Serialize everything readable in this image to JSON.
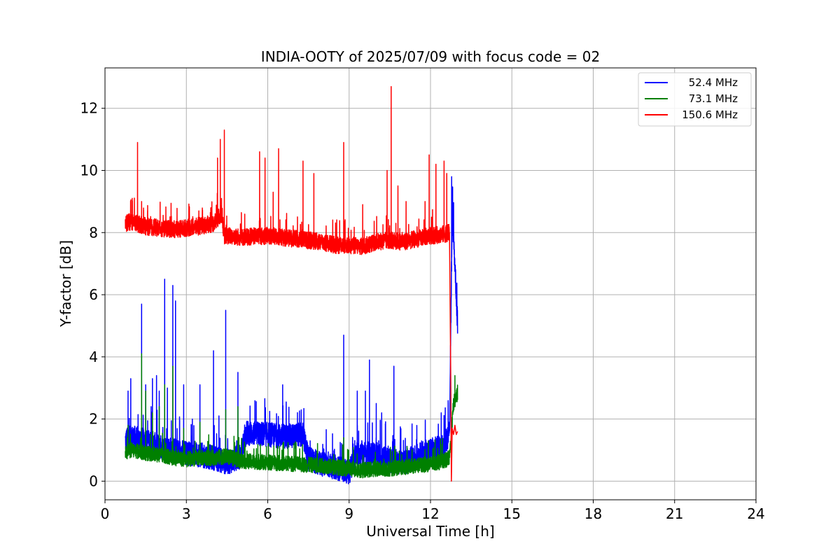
{
  "chart_data": {
    "type": "line",
    "title": "INDIA-OOTY of 2025/07/09 with focus code = 02",
    "xlabel": "Universal Time [h]",
    "ylabel": "Y-factor [dB]",
    "xlim": [
      0,
      24
    ],
    "ylim": [
      -0.6,
      13.3
    ],
    "xticks": [
      "0",
      "3",
      "6",
      "9",
      "12",
      "15",
      "18",
      "21",
      "24"
    ],
    "yticks": [
      "0",
      "2",
      "4",
      "6",
      "8",
      "10",
      "12"
    ],
    "grid": true,
    "legend_position": "top-right",
    "series": [
      {
        "name": "52.4 MHz",
        "color": "#0000ff",
        "base": [
          [
            0.75,
            1.3
          ],
          [
            1.0,
            1.4
          ],
          [
            1.5,
            1.3
          ],
          [
            2.0,
            1.1
          ],
          [
            2.5,
            1.0
          ],
          [
            3.0,
            0.9
          ],
          [
            3.5,
            0.85
          ],
          [
            4.0,
            0.75
          ],
          [
            4.5,
            0.6
          ],
          [
            5.0,
            0.8
          ],
          [
            5.2,
            1.55
          ],
          [
            6.0,
            1.5
          ],
          [
            6.5,
            1.45
          ],
          [
            7.0,
            1.45
          ],
          [
            7.3,
            1.5
          ],
          [
            7.5,
            0.7
          ],
          [
            8.0,
            0.55
          ],
          [
            8.5,
            0.45
          ],
          [
            9.0,
            0.3
          ],
          [
            9.3,
            0.9
          ],
          [
            10.0,
            0.85
          ],
          [
            10.5,
            0.65
          ],
          [
            11.0,
            0.6
          ],
          [
            11.5,
            0.8
          ],
          [
            12.0,
            1.0
          ],
          [
            12.5,
            1.1
          ],
          [
            12.7,
            1.6
          ],
          [
            12.8,
            8.6
          ],
          [
            12.9,
            7.0
          ],
          [
            13.0,
            5.0
          ]
        ],
        "noise": 0.4,
        "spikes": [
          [
            0.85,
            2.9
          ],
          [
            0.95,
            3.3
          ],
          [
            1.35,
            5.7
          ],
          [
            1.5,
            3.1
          ],
          [
            1.7,
            2.4
          ],
          [
            1.75,
            3.3
          ],
          [
            1.9,
            3.4
          ],
          [
            2.0,
            2.9
          ],
          [
            2.2,
            6.5
          ],
          [
            2.3,
            3.0
          ],
          [
            2.5,
            6.3
          ],
          [
            2.6,
            5.8
          ],
          [
            2.9,
            3.1
          ],
          [
            3.5,
            3.1
          ],
          [
            4.0,
            4.2
          ],
          [
            4.2,
            2.1
          ],
          [
            4.45,
            5.5
          ],
          [
            4.9,
            3.5
          ],
          [
            6.55,
            3.1
          ],
          [
            8.8,
            4.7
          ],
          [
            9.3,
            2.9
          ],
          [
            9.6,
            2.9
          ],
          [
            9.75,
            3.9
          ],
          [
            10.0,
            2.5
          ],
          [
            10.2,
            2.2
          ],
          [
            10.65,
            3.7
          ],
          [
            12.78,
            9.8
          ]
        ]
      },
      {
        "name": "73.1 MHz",
        "color": "#008000",
        "base": [
          [
            0.75,
            0.95
          ],
          [
            1.0,
            1.0
          ],
          [
            1.5,
            0.9
          ],
          [
            2.0,
            0.85
          ],
          [
            2.5,
            0.75
          ],
          [
            3.0,
            0.7
          ],
          [
            3.5,
            0.75
          ],
          [
            4.0,
            0.75
          ],
          [
            4.5,
            0.8
          ],
          [
            5.0,
            0.65
          ],
          [
            6.0,
            0.6
          ],
          [
            7.0,
            0.55
          ],
          [
            8.0,
            0.5
          ],
          [
            8.5,
            0.45
          ],
          [
            9.0,
            0.4
          ],
          [
            9.5,
            0.35
          ],
          [
            10.0,
            0.4
          ],
          [
            10.5,
            0.4
          ],
          [
            11.0,
            0.45
          ],
          [
            11.5,
            0.5
          ],
          [
            12.0,
            0.55
          ],
          [
            12.5,
            0.65
          ],
          [
            12.7,
            0.75
          ],
          [
            12.85,
            2.5
          ],
          [
            13.0,
            2.8
          ]
        ],
        "noise": 0.25,
        "spikes": [
          [
            0.85,
            1.8
          ],
          [
            1.35,
            4.1
          ],
          [
            1.5,
            2.9
          ],
          [
            1.75,
            2.2
          ],
          [
            2.0,
            2.4
          ],
          [
            2.2,
            3.1
          ],
          [
            2.5,
            3.7
          ],
          [
            2.9,
            1.7
          ],
          [
            3.5,
            1.9
          ],
          [
            4.45,
            2.3
          ],
          [
            4.9,
            2.4
          ],
          [
            8.8,
            1.4
          ],
          [
            12.9,
            3.4
          ]
        ]
      },
      {
        "name": "150.6 MHz",
        "color": "#ff0000",
        "base": [
          [
            0.75,
            8.3
          ],
          [
            1.0,
            8.35
          ],
          [
            1.5,
            8.2
          ],
          [
            2.0,
            8.15
          ],
          [
            2.5,
            8.1
          ],
          [
            3.0,
            8.15
          ],
          [
            3.5,
            8.2
          ],
          [
            4.0,
            8.3
          ],
          [
            4.3,
            8.6
          ],
          [
            4.4,
            7.9
          ],
          [
            4.5,
            7.9
          ],
          [
            5.0,
            7.85
          ],
          [
            6.0,
            7.9
          ],
          [
            6.5,
            7.85
          ],
          [
            7.0,
            7.8
          ],
          [
            7.5,
            7.75
          ],
          [
            8.0,
            7.7
          ],
          [
            8.5,
            7.6
          ],
          [
            9.0,
            7.6
          ],
          [
            9.5,
            7.55
          ],
          [
            10.0,
            7.7
          ],
          [
            10.5,
            7.75
          ],
          [
            11.0,
            7.7
          ],
          [
            11.5,
            7.8
          ],
          [
            12.0,
            7.9
          ],
          [
            12.5,
            7.95
          ],
          [
            12.7,
            8.0
          ]
        ],
        "noise": 0.28,
        "spikes": [
          [
            1.2,
            10.9
          ],
          [
            1.35,
            9.0
          ],
          [
            3.9,
            8.8
          ],
          [
            4.15,
            10.4
          ],
          [
            4.25,
            11.0
          ],
          [
            4.4,
            11.3
          ],
          [
            5.7,
            10.6
          ],
          [
            5.9,
            10.4
          ],
          [
            6.2,
            9.3
          ],
          [
            6.4,
            10.7
          ],
          [
            7.3,
            10.3
          ],
          [
            7.7,
            9.9
          ],
          [
            8.8,
            10.9
          ],
          [
            9.5,
            8.9
          ],
          [
            10.4,
            10.0
          ],
          [
            10.55,
            12.7
          ],
          [
            10.8,
            9.5
          ],
          [
            11.1,
            9.0
          ],
          [
            11.8,
            9.0
          ],
          [
            11.95,
            10.5
          ],
          [
            12.2,
            10.2
          ],
          [
            12.5,
            10.3
          ],
          [
            12.6,
            9.9
          ]
        ],
        "tail": [
          [
            12.7,
            8.0
          ],
          [
            12.75,
            3.0
          ],
          [
            12.77,
            0.0
          ],
          [
            12.8,
            1.7
          ],
          [
            12.85,
            1.5
          ],
          [
            12.9,
            1.8
          ],
          [
            12.95,
            1.5
          ],
          [
            13.0,
            1.6
          ]
        ]
      }
    ]
  }
}
